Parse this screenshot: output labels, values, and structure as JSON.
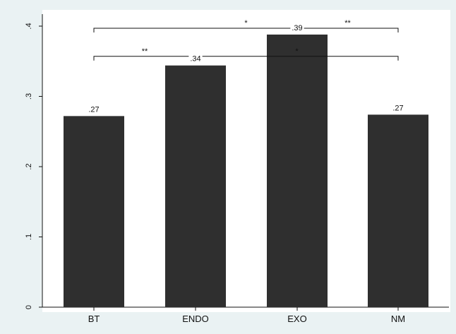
{
  "chart_data": {
    "type": "bar",
    "categories": [
      "BT",
      "ENDO",
      "EXO",
      "NM"
    ],
    "values": [
      0.272,
      0.344,
      0.388,
      0.274
    ],
    "data_labels": [
      ".27",
      ".34",
      ".39",
      ".27"
    ],
    "title": "",
    "xlabel": "",
    "ylabel": "",
    "ylim": [
      0,
      0.4
    ],
    "yticks": [
      0,
      0.1,
      0.2,
      0.3,
      0.4
    ],
    "ytick_labels": [
      "0",
      ".1",
      ".2",
      ".3",
      ".4"
    ],
    "grid": false,
    "legend": "none",
    "significance": [
      {
        "from": "BT",
        "to": "NM",
        "label": "*",
        "y": 0.397
      },
      {
        "from": "EXO",
        "to": "NM",
        "label": "**",
        "y": 0.397
      },
      {
        "from": "BT",
        "to": "ENDO",
        "label": "**",
        "y": 0.357
      },
      {
        "from": "ENDO",
        "to": "NM",
        "label": "*",
        "y": 0.357
      }
    ],
    "colors": {
      "bar": "#2f2f2f",
      "plot_background": "#ffffff",
      "outer_background": "#eaf2f3",
      "axis": "#111111"
    }
  }
}
